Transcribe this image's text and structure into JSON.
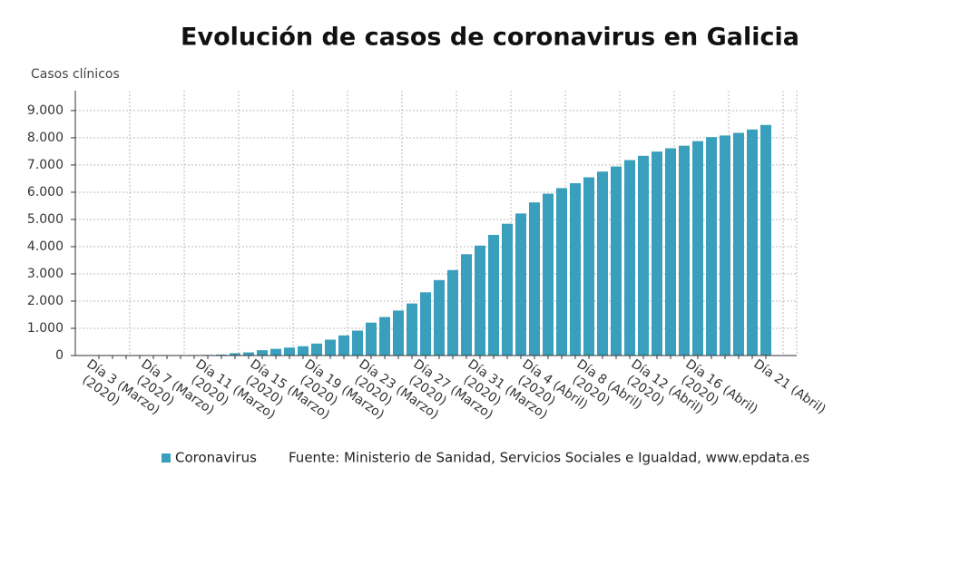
{
  "chart_data": {
    "type": "bar",
    "title": "Evolución de casos de coronavirus en Galicia",
    "y_label": "Casos clínicos",
    "source": "Fuente: Ministerio de Sanidad, Servicios Sociales e Igualdad, www.epdata.es",
    "categories": [
      "Día 3 (Marzo) (2020)",
      null,
      null,
      null,
      "Día 7 (Marzo) (2020)",
      null,
      null,
      null,
      "Día 11 (Marzo) (2020)",
      null,
      null,
      null,
      "Día 15 (Marzo) (2020)",
      null,
      null,
      null,
      "Día 19 (Marzo) (2020)",
      null,
      null,
      null,
      "Día 23 (Marzo) (2020)",
      null,
      null,
      null,
      "Día 27 (Marzo) (2020)",
      null,
      null,
      null,
      "Día 31 (Marzo) (2020)",
      null,
      null,
      null,
      "Día 4 (Abril) (2020)",
      null,
      null,
      null,
      "Día 8 (Abril) (2020)",
      null,
      null,
      null,
      "Día 12 (Abril) (2020)",
      null,
      null,
      null,
      "Día 16 (Abril) (2020)",
      null,
      null,
      null,
      null,
      "Día 21 (Abril)"
    ],
    "series": [
      {
        "name": "Coronavirus",
        "color": "#3a9fbc",
        "values": [
          0,
          1,
          1,
          2,
          3,
          5,
          6,
          18,
          22,
          35,
          85,
          115,
          195,
          245,
          292,
          341,
          439,
          582,
          738,
          915,
          1208,
          1415,
          1653,
          1912,
          2322,
          2772,
          3139,
          3723,
          4039,
          4432,
          4842,
          5218,
          5625,
          5946,
          6151,
          6331,
          6548,
          6758,
          6946,
          7180,
          7337,
          7494,
          7615,
          7708,
          7876,
          8025,
          8084,
          8181,
          8305,
          8472
        ]
      }
    ],
    "ylim": [
      0,
      9730
    ],
    "yticks": [
      0,
      {
        "value": 1000,
        "label": "1.000"
      },
      {
        "value": 2000,
        "label": "2.000"
      },
      {
        "value": 3000,
        "label": "3.000"
      },
      {
        "value": 4000,
        "label": "4.000"
      },
      {
        "value": 5000,
        "label": "5.000"
      },
      {
        "value": 6000,
        "label": "6.000"
      },
      {
        "value": 7000,
        "label": "7.000"
      },
      {
        "value": 8000,
        "label": "8.000"
      },
      {
        "value": 9000,
        "label": "9.000"
      }
    ],
    "grid": true
  }
}
